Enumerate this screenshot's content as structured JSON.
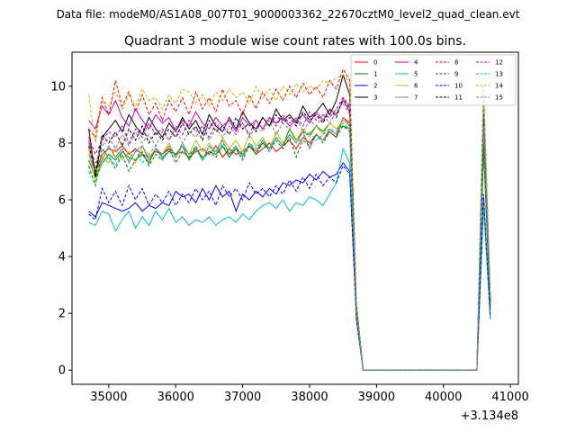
{
  "suptitle": "Data file: modeM0/AS1A08_007T01_9000003362_22670cztM0_level2_quad_clean.evt",
  "chart_data": {
    "type": "line",
    "title": "Quadrant 3 module wise count rates with 100.0s bins.",
    "xlabel": "",
    "ylabel": "",
    "x_offset_label": "+3.134e8",
    "xlim": [
      34450,
      41120
    ],
    "ylim": [
      -0.5,
      11.2
    ],
    "x_ticks": [
      35000,
      36000,
      37000,
      38000,
      39000,
      40000,
      41000
    ],
    "y_ticks": [
      0,
      2,
      4,
      6,
      8,
      10
    ],
    "grid": false,
    "legend": "top-right",
    "x": [
      34700,
      34800,
      34900,
      35000,
      35100,
      35200,
      35300,
      35400,
      35500,
      35600,
      35700,
      35800,
      35900,
      36000,
      36100,
      36200,
      36300,
      36400,
      36500,
      36600,
      36700,
      36800,
      36900,
      37000,
      37100,
      37200,
      37300,
      37400,
      37500,
      37600,
      37700,
      37800,
      37900,
      38000,
      38100,
      38200,
      38300,
      38400,
      38500,
      38600,
      38700,
      38800,
      38900,
      39000,
      39100,
      39200,
      39300,
      39400,
      39500,
      39600,
      39700,
      39800,
      39900,
      40000,
      40100,
      40200,
      40300,
      40400,
      40500,
      40600,
      40700
    ],
    "series": [
      {
        "name": "0",
        "color": "#ff0000",
        "dash": false,
        "values": [
          8.1,
          7.0,
          7.6,
          7.8,
          7.7,
          7.9,
          7.6,
          7.8,
          7.6,
          7.5,
          7.7,
          7.6,
          7.8,
          7.6,
          7.7,
          7.5,
          7.7,
          7.8,
          7.6,
          7.9,
          7.5,
          7.8,
          7.6,
          7.7,
          7.9,
          7.6,
          7.8,
          8.0,
          7.7,
          7.9,
          8.1,
          7.8,
          8.2,
          8.0,
          8.3,
          8.1,
          8.4,
          8.2,
          8.9,
          8.7,
          2.0,
          0.0,
          0.0,
          0.0,
          0.0,
          0.0,
          0.0,
          0.0,
          0.0,
          0.0,
          0.0,
          0.0,
          0.0,
          0.0,
          0.0,
          0.0,
          0.0,
          0.0,
          0.0,
          8.0,
          2.5
        ]
      },
      {
        "name": "1",
        "color": "#008000",
        "dash": false,
        "values": [
          7.4,
          6.8,
          7.3,
          7.6,
          7.4,
          7.7,
          7.5,
          7.4,
          7.6,
          7.3,
          7.8,
          7.5,
          7.7,
          7.6,
          7.9,
          7.4,
          7.8,
          7.5,
          7.7,
          7.6,
          7.9,
          7.5,
          7.8,
          7.6,
          7.9,
          7.7,
          8.0,
          7.8,
          8.2,
          7.9,
          8.5,
          8.1,
          8.4,
          8.3,
          8.6,
          8.4,
          8.7,
          8.5,
          8.6,
          8.5,
          2.0,
          0.0,
          0.0,
          0.0,
          0.0,
          0.0,
          0.0,
          0.0,
          0.0,
          0.0,
          0.0,
          0.0,
          0.0,
          0.0,
          0.0,
          0.0,
          0.0,
          0.0,
          0.0,
          7.8,
          2.2
        ]
      },
      {
        "name": "2",
        "color": "#0000ff",
        "dash": false,
        "values": [
          5.6,
          5.4,
          5.9,
          5.8,
          5.7,
          5.6,
          5.7,
          5.9,
          5.6,
          5.8,
          5.7,
          5.9,
          5.8,
          6.3,
          6.1,
          6.2,
          5.9,
          6.4,
          6.0,
          6.5,
          6.1,
          6.3,
          5.6,
          6.2,
          6.0,
          6.3,
          6.1,
          6.4,
          6.2,
          6.6,
          6.5,
          6.7,
          6.6,
          6.9,
          6.7,
          7.0,
          6.8,
          6.9,
          7.3,
          7.0,
          1.8,
          0.0,
          0.0,
          0.0,
          0.0,
          0.0,
          0.0,
          0.0,
          0.0,
          0.0,
          0.0,
          0.0,
          0.0,
          0.0,
          0.0,
          0.0,
          0.0,
          0.0,
          0.0,
          6.0,
          1.8
        ]
      },
      {
        "name": "3",
        "color": "#000000",
        "dash": false,
        "values": [
          8.5,
          6.8,
          8.2,
          8.5,
          8.8,
          8.4,
          9.0,
          8.6,
          8.3,
          8.9,
          8.5,
          8.2,
          8.7,
          8.4,
          8.9,
          8.5,
          8.8,
          8.3,
          9.0,
          8.6,
          8.4,
          8.9,
          8.5,
          9.1,
          8.7,
          8.5,
          8.9,
          8.6,
          9.2,
          8.8,
          9.0,
          8.7,
          9.3,
          8.9,
          9.1,
          9.4,
          9.0,
          9.5,
          10.4,
          9.7,
          2.0,
          0.0,
          0.0,
          0.0,
          0.0,
          0.0,
          0.0,
          0.0,
          0.0,
          0.0,
          0.0,
          0.0,
          0.0,
          0.0,
          0.0,
          0.0,
          0.0,
          0.0,
          0.0,
          9.0,
          2.5
        ]
      },
      {
        "name": "4",
        "color": "#bf00bf",
        "dash": false,
        "values": [
          8.8,
          8.5,
          9.3,
          9.0,
          9.5,
          8.9,
          8.6,
          9.2,
          8.8,
          8.5,
          9.0,
          8.7,
          8.9,
          8.4,
          8.8,
          8.6,
          9.1,
          8.7,
          8.5,
          8.9,
          8.6,
          8.8,
          8.4,
          8.9,
          8.6,
          8.8,
          8.5,
          8.9,
          8.7,
          8.9,
          8.6,
          8.8,
          9.0,
          8.7,
          9.1,
          8.8,
          9.2,
          9.0,
          9.5,
          9.1,
          2.2,
          0.0,
          0.0,
          0.0,
          0.0,
          0.0,
          0.0,
          0.0,
          0.0,
          0.0,
          0.0,
          0.0,
          0.0,
          0.0,
          0.0,
          0.0,
          0.0,
          0.0,
          0.0,
          8.8,
          2.4
        ]
      },
      {
        "name": "5",
        "color": "#00bfbf",
        "dash": false,
        "values": [
          5.2,
          5.1,
          5.6,
          5.5,
          4.9,
          5.3,
          5.6,
          5.0,
          5.4,
          5.1,
          5.6,
          5.3,
          5.7,
          5.2,
          5.4,
          5.1,
          5.3,
          5.2,
          5.4,
          5.1,
          5.3,
          5.4,
          5.2,
          5.5,
          5.3,
          5.6,
          5.8,
          5.9,
          5.7,
          6.0,
          5.6,
          5.9,
          5.8,
          6.1,
          6.0,
          5.8,
          6.2,
          6.6,
          7.8,
          7.3,
          1.8,
          0.0,
          0.0,
          0.0,
          0.0,
          0.0,
          0.0,
          0.0,
          0.0,
          0.0,
          0.0,
          0.0,
          0.0,
          0.0,
          0.0,
          0.0,
          0.0,
          0.0,
          0.0,
          5.8,
          1.8
        ]
      },
      {
        "name": "6",
        "color": "#bfbf00",
        "dash": false,
        "values": [
          7.8,
          6.6,
          7.5,
          7.3,
          7.8,
          7.4,
          7.7,
          7.3,
          7.9,
          7.5,
          7.8,
          7.6,
          8.0,
          7.5,
          7.9,
          7.6,
          8.1,
          7.7,
          8.0,
          7.6,
          8.2,
          7.8,
          8.1,
          7.7,
          8.3,
          7.9,
          8.2,
          7.8,
          8.4,
          8.0,
          8.3,
          8.1,
          8.5,
          8.2,
          8.6,
          8.3,
          8.7,
          8.5,
          8.8,
          8.6,
          2.0,
          0.0,
          0.0,
          0.0,
          0.0,
          0.0,
          0.0,
          0.0,
          0.0,
          0.0,
          0.0,
          0.0,
          0.0,
          0.0,
          0.0,
          0.0,
          0.0,
          0.0,
          0.0,
          8.2,
          2.3
        ]
      },
      {
        "name": "7",
        "color": "#808080",
        "dash": false,
        "values": [
          7.6,
          7.0,
          7.4,
          7.9,
          7.5,
          7.8,
          7.3,
          7.7,
          7.9,
          7.4,
          7.8,
          7.6,
          7.9,
          7.5,
          8.0,
          7.6,
          7.8,
          7.4,
          7.9,
          7.7,
          8.1,
          7.6,
          7.9,
          7.5,
          8.0,
          7.7,
          8.1,
          7.8,
          8.2,
          7.9,
          8.3,
          8.0,
          8.4,
          7.8,
          8.3,
          8.1,
          8.5,
          8.3,
          8.9,
          8.6,
          2.1,
          0.0,
          0.0,
          0.0,
          0.0,
          0.0,
          0.0,
          0.0,
          0.0,
          0.0,
          0.0,
          0.0,
          0.0,
          0.0,
          0.0,
          0.0,
          0.0,
          0.0,
          0.0,
          8.1,
          2.2
        ]
      },
      {
        "name": "8",
        "color": "#ff0000",
        "dash": true,
        "values": [
          8.5,
          8.2,
          9.6,
          9.0,
          10.2,
          9.3,
          9.8,
          9.1,
          9.7,
          9.0,
          9.4,
          8.8,
          9.5,
          9.1,
          9.6,
          9.0,
          9.8,
          9.2,
          9.6,
          9.1,
          9.9,
          9.3,
          9.5,
          9.0,
          9.7,
          9.2,
          9.8,
          9.4,
          9.9,
          9.5,
          10.0,
          9.6,
          10.1,
          9.7,
          10.0,
          9.6,
          10.2,
          9.9,
          10.6,
          10.2,
          2.4,
          0.0,
          0.0,
          0.0,
          0.0,
          0.0,
          0.0,
          0.0,
          0.0,
          0.0,
          0.0,
          0.0,
          0.0,
          0.0,
          0.0,
          0.0,
          0.0,
          0.0,
          0.0,
          10.0,
          2.6
        ]
      },
      {
        "name": "9",
        "color": "#008000",
        "dash": true,
        "values": [
          7.2,
          6.5,
          7.8,
          7.5,
          7.1,
          7.6,
          7.0,
          7.4,
          7.7,
          7.2,
          7.6,
          7.4,
          7.8,
          7.3,
          7.7,
          7.5,
          7.9,
          7.4,
          7.7,
          7.5,
          7.9,
          7.6,
          7.8,
          7.4,
          7.9,
          7.6,
          8.0,
          7.7,
          8.1,
          7.8,
          8.2,
          7.5,
          8.1,
          7.9,
          8.3,
          8.0,
          8.4,
          8.2,
          8.6,
          8.4,
          2.0,
          0.0,
          0.0,
          0.0,
          0.0,
          0.0,
          0.0,
          0.0,
          0.0,
          0.0,
          0.0,
          0.0,
          0.0,
          0.0,
          0.0,
          0.0,
          0.0,
          0.0,
          0.0,
          7.9,
          2.2
        ]
      },
      {
        "name": "10",
        "color": "#0000ff",
        "dash": true,
        "values": [
          5.5,
          5.3,
          6.4,
          5.9,
          6.3,
          5.8,
          6.5,
          6.0,
          6.4,
          5.8,
          6.2,
          5.9,
          6.3,
          5.8,
          6.2,
          5.9,
          6.4,
          6.0,
          6.3,
          5.8,
          6.5,
          6.1,
          6.4,
          6.0,
          6.6,
          6.2,
          6.4,
          6.1,
          6.5,
          6.2,
          6.7,
          6.3,
          6.8,
          6.4,
          6.9,
          6.5,
          6.8,
          6.6,
          7.2,
          6.9,
          1.8,
          0.0,
          0.0,
          0.0,
          0.0,
          0.0,
          0.0,
          0.0,
          0.0,
          0.0,
          0.0,
          0.0,
          0.0,
          0.0,
          0.0,
          0.0,
          0.0,
          0.0,
          0.0,
          6.2,
          1.9
        ]
      },
      {
        "name": "11",
        "color": "#000000",
        "dash": true,
        "values": [
          7.9,
          7.0,
          8.3,
          8.0,
          8.4,
          7.9,
          8.5,
          8.1,
          8.6,
          8.0,
          8.4,
          8.1,
          8.5,
          8.2,
          8.7,
          8.3,
          8.6,
          8.1,
          8.8,
          8.4,
          8.6,
          8.3,
          8.9,
          8.5,
          8.7,
          8.4,
          8.9,
          8.6,
          9.0,
          8.7,
          8.9,
          8.6,
          9.1,
          8.8,
          9.0,
          8.7,
          9.2,
          8.9,
          9.6,
          9.2,
          2.2,
          0.0,
          0.0,
          0.0,
          0.0,
          0.0,
          0.0,
          0.0,
          0.0,
          0.0,
          0.0,
          0.0,
          0.0,
          0.0,
          0.0,
          0.0,
          0.0,
          0.0,
          0.0,
          9.2,
          2.4
        ]
      },
      {
        "name": "12",
        "color": "#bf00bf",
        "dash": true,
        "values": [
          8.2,
          7.6,
          8.1,
          8.4,
          8.2,
          8.6,
          8.0,
          8.5,
          8.2,
          8.7,
          8.3,
          8.5,
          8.1,
          8.6,
          8.3,
          8.8,
          8.4,
          8.6,
          8.2,
          8.7,
          8.4,
          8.9,
          8.5,
          8.7,
          8.3,
          8.8,
          8.5,
          8.9,
          8.6,
          9.0,
          8.7,
          8.9,
          8.6,
          9.1,
          8.8,
          9.0,
          8.9,
          9.2,
          9.6,
          9.3,
          2.2,
          0.0,
          0.0,
          0.0,
          0.0,
          0.0,
          0.0,
          0.0,
          0.0,
          0.0,
          0.0,
          0.0,
          0.0,
          0.0,
          0.0,
          0.0,
          0.0,
          0.0,
          0.0,
          9.5,
          2.4
        ]
      },
      {
        "name": "13",
        "color": "#00bfbf",
        "dash": true,
        "values": [
          7.0,
          6.6,
          7.3,
          7.5,
          7.2,
          7.7,
          7.4,
          7.8,
          7.3,
          7.6,
          7.9,
          7.4,
          7.7,
          7.5,
          7.9,
          7.6,
          7.8,
          7.4,
          7.9,
          7.6,
          8.0,
          7.7,
          7.9,
          7.5,
          8.0,
          7.8,
          8.1,
          7.7,
          8.2,
          7.9,
          8.3,
          8.0,
          8.2,
          8.4,
          8.1,
          8.3,
          8.5,
          8.4,
          8.7,
          8.5,
          2.0,
          0.0,
          0.0,
          0.0,
          0.0,
          0.0,
          0.0,
          0.0,
          0.0,
          0.0,
          0.0,
          0.0,
          0.0,
          0.0,
          0.0,
          0.0,
          0.0,
          0.0,
          0.0,
          10.1,
          2.5
        ]
      },
      {
        "name": "14",
        "color": "#bfbf00",
        "dash": true,
        "values": [
          9.7,
          8.0,
          9.5,
          9.3,
          9.8,
          9.2,
          9.7,
          9.3,
          9.9,
          9.5,
          9.6,
          9.2,
          9.7,
          9.4,
          9.9,
          9.8,
          9.4,
          9.7,
          9.3,
          9.8,
          9.5,
          9.9,
          9.6,
          9.8,
          9.4,
          10.0,
          9.6,
          9.9,
          9.5,
          10.0,
          9.7,
          10.1,
          9.8,
          10.0,
          9.9,
          10.2,
          10.1,
          10.3,
          10.4,
          10.1,
          2.4,
          0.0,
          0.0,
          0.0,
          0.0,
          0.0,
          0.0,
          0.0,
          0.0,
          0.0,
          0.0,
          0.0,
          0.0,
          0.0,
          0.0,
          0.0,
          0.0,
          0.0,
          0.0,
          9.6,
          2.5
        ]
      },
      {
        "name": "15",
        "color": "#808080",
        "dash": true,
        "values": [
          8.0,
          7.3,
          7.9,
          8.2,
          7.8,
          8.3,
          7.9,
          8.4,
          8.0,
          8.3,
          7.9,
          8.4,
          8.1,
          8.5,
          8.0,
          8.4,
          8.2,
          8.6,
          8.1,
          8.5,
          8.2,
          8.6,
          8.3,
          8.7,
          8.2,
          8.6,
          8.4,
          8.8,
          8.3,
          8.7,
          8.5,
          8.9,
          8.4,
          8.8,
          8.6,
          9.0,
          8.7,
          9.1,
          9.4,
          9.0,
          2.1,
          0.0,
          0.0,
          0.0,
          0.0,
          0.0,
          0.0,
          0.0,
          0.0,
          0.0,
          0.0,
          0.0,
          0.0,
          0.0,
          0.0,
          0.0,
          0.0,
          0.0,
          0.0,
          8.6,
          2.3
        ]
      }
    ]
  }
}
